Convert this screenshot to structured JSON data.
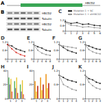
{
  "diagram": {
    "label": "A",
    "gene": "HBCD2"
  },
  "blot": {
    "label": "B",
    "rows": [
      "HBCD2",
      "Tubulin",
      "HBCD2",
      "Tubulin"
    ]
  },
  "chart_data": [
    {
      "type": "line",
      "title": "C",
      "categories": [
        "0",
        "1",
        "2",
        "3",
        "4",
        "5",
        "6"
      ],
      "series": [
        {
          "name": "Mutation 1 + NC",
          "color": "#222222",
          "values": [
            1.0,
            0.8,
            0.9,
            0.7,
            0.75,
            0.6,
            0.55
          ]
        },
        {
          "name": "Mutation 1 + shHBCD2",
          "color": "#999999",
          "values": [
            0.9,
            0.6,
            0.55,
            0.4,
            0.45,
            0.35,
            0.3
          ]
        }
      ],
      "ylim": [
        0,
        1.2
      ],
      "yticks": [
        0,
        0.6,
        1.2
      ],
      "legend": "top"
    },
    {
      "type": "line",
      "title": "D",
      "categories": [
        "0",
        "2",
        "4",
        "6",
        "8"
      ],
      "series": [
        {
          "color": "#222222",
          "values": [
            1.0,
            0.9,
            0.7,
            0.6,
            0.5
          ]
        },
        {
          "color": "#d9342b",
          "values": [
            1.0,
            0.7,
            0.45,
            0.3,
            0.2
          ]
        }
      ],
      "ylim": [
        0,
        1.2
      ],
      "yticks": [
        0,
        0.6,
        1.2
      ]
    },
    {
      "type": "line",
      "title": "E",
      "categories": [
        "0",
        "2",
        "4",
        "6",
        "8"
      ],
      "series": [
        {
          "color": "#222222",
          "values": [
            1.0,
            0.85,
            0.75,
            0.6,
            0.55
          ]
        },
        {
          "color": "#999999",
          "values": [
            1.0,
            0.6,
            0.4,
            0.3,
            0.25
          ]
        }
      ],
      "ylim": [
        0,
        1.2
      ],
      "yticks": [
        0,
        0.6,
        1.2
      ]
    },
    {
      "type": "line",
      "title": "F",
      "categories": [
        "0",
        "2",
        "4",
        "6",
        "8"
      ],
      "series": [
        {
          "color": "#222222",
          "values": [
            1.0,
            0.8,
            0.6,
            0.5,
            0.4
          ]
        },
        {
          "color": "#999999",
          "values": [
            1.0,
            0.9,
            0.85,
            0.8,
            0.75
          ]
        }
      ],
      "ylim": [
        0,
        1.2
      ],
      "yticks": [
        0,
        0.6,
        1.2
      ]
    },
    {
      "type": "line",
      "title": "G",
      "categories": [
        "0",
        "2",
        "4",
        "6",
        "8"
      ],
      "series": [
        {
          "color": "#222222",
          "values": [
            1.0,
            0.9,
            0.8,
            0.7,
            0.65
          ]
        },
        {
          "color": "#999999",
          "values": [
            1.0,
            0.65,
            0.5,
            0.4,
            0.35
          ]
        }
      ],
      "ylim": [
        0,
        1.2
      ],
      "yticks": [
        0,
        0.6,
        1.2
      ]
    },
    {
      "type": "bar",
      "title": "H",
      "categories": [
        "1",
        "2",
        "3"
      ],
      "series": [
        {
          "color": "#4caf50",
          "values": [
            30,
            25,
            20
          ]
        },
        {
          "color": "#7b5ea7",
          "values": [
            20,
            15,
            10
          ]
        },
        {
          "color": "#e6c229",
          "values": [
            28,
            30,
            26
          ]
        },
        {
          "color": "#d94f3d",
          "values": [
            10,
            8,
            6
          ]
        }
      ],
      "ylim": [
        0,
        40
      ],
      "yticks": [
        0,
        20,
        40
      ]
    },
    {
      "type": "bar",
      "title": "I",
      "categories": [
        "1",
        "2",
        "3"
      ],
      "series": [
        {
          "color": "#f0a030",
          "values": [
            25,
            30,
            35
          ]
        },
        {
          "color": "#f5d547",
          "values": [
            10,
            12,
            15
          ]
        },
        {
          "color": "#c0392b",
          "values": [
            18,
            20,
            22
          ]
        }
      ],
      "ylim": [
        0,
        40
      ],
      "yticks": [
        0,
        20,
        40
      ]
    },
    {
      "type": "line",
      "title": "J",
      "categories": [
        "0",
        "1",
        "2",
        "3",
        "4"
      ],
      "series": [
        {
          "color": "#222222",
          "values": [
            1.0,
            0.9,
            0.8,
            0.75,
            0.7
          ]
        },
        {
          "color": "#999999",
          "values": [
            1.0,
            0.6,
            0.5,
            0.4,
            0.35
          ]
        }
      ],
      "ylim": [
        0,
        1.2
      ],
      "yticks": [
        0,
        0.6,
        1.2
      ]
    },
    {
      "type": "line",
      "title": "K",
      "categories": [
        "0",
        "1",
        "2",
        "3",
        "4"
      ],
      "series": [
        {
          "color": "#222222",
          "values": [
            1.0,
            0.85,
            0.8,
            0.7,
            0.65
          ]
        },
        {
          "color": "#999999",
          "values": [
            1.0,
            0.7,
            0.55,
            0.45,
            0.4
          ]
        }
      ],
      "ylim": [
        0,
        1.2
      ],
      "yticks": [
        0,
        0.6,
        1.2
      ]
    }
  ]
}
